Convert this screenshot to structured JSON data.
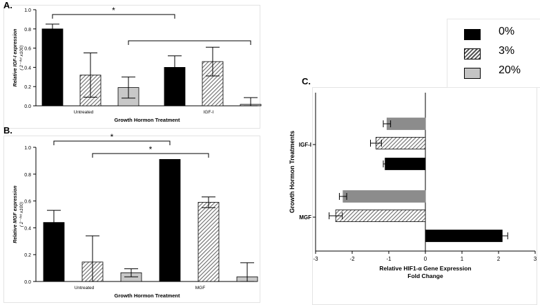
{
  "panel_labels": {
    "a": "A.",
    "b": "B.",
    "c": "C."
  },
  "legend": {
    "items": [
      {
        "label": "0%",
        "color": "#000000",
        "fill": "solid"
      },
      {
        "label": "3%",
        "color": "#888888",
        "fill": "hatch"
      },
      {
        "label": "20%",
        "color": "#bdbdbd",
        "fill": "light"
      }
    ]
  },
  "chart_data": [
    {
      "id": "A",
      "type": "bar",
      "title": "",
      "xlabel": "Growth Hormon Treatment",
      "ylabel_line1": "Relative IGF-I expression",
      "ylabel_line2": "( 2⁻ᐞᶜᵗ x100)",
      "ylim": [
        0,
        1.0
      ],
      "yticks": [
        "0.0",
        "0.2",
        "0.4",
        "0.6",
        "0.8",
        "1.0"
      ],
      "groups": [
        "Untreated",
        "IGF-I"
      ],
      "series": [
        {
          "name": "0%",
          "values": [
            0.8,
            0.4
          ],
          "errors": [
            0.05,
            0.12
          ]
        },
        {
          "name": "3%",
          "values": [
            0.32,
            0.46
          ],
          "errors": [
            0.23,
            0.15
          ]
        },
        {
          "name": "20%",
          "values": [
            0.19,
            0.015
          ],
          "errors": [
            0.11,
            0.07
          ]
        }
      ],
      "significance": [
        {
          "label": "*",
          "from": [
            0,
            0
          ],
          "to": [
            1,
            0
          ]
        },
        {
          "label": "",
          "from": [
            0,
            2
          ],
          "to": [
            1,
            2
          ]
        }
      ]
    },
    {
      "id": "B",
      "type": "bar",
      "title": "",
      "xlabel": "Growth Hormon Treatment",
      "ylabel_line1": "Relative MGF expression",
      "ylabel_line2": "( 2⁻ᐞᶜᵗ x100)",
      "ylim": [
        0,
        1.0
      ],
      "yticks": [
        "0.0",
        "0.2",
        "0.4",
        "0.6",
        "0.8",
        "1.0"
      ],
      "groups": [
        "Untreated",
        "MGF"
      ],
      "series": [
        {
          "name": "0%",
          "values": [
            0.44,
            0.91
          ],
          "errors": [
            0.09,
            0.0
          ]
        },
        {
          "name": "3%",
          "values": [
            0.145,
            0.59
          ],
          "errors": [
            0.195,
            0.04
          ]
        },
        {
          "name": "20%",
          "values": [
            0.065,
            0.035
          ],
          "errors": [
            0.03,
            0.105
          ]
        }
      ],
      "significance": [
        {
          "label": "*",
          "from": [
            0,
            0
          ],
          "to": [
            1,
            0
          ]
        },
        {
          "label": "*",
          "from": [
            0,
            1
          ],
          "to": [
            1,
            1
          ]
        }
      ]
    },
    {
      "id": "C",
      "type": "bar",
      "orientation": "horizontal",
      "title": "",
      "xlabel_line1": "Relative HIF1-α Gene Expression",
      "xlabel_line2": "Fold Change",
      "ylabel": "Growth Hormon Treatments",
      "xlim": [
        -3,
        3
      ],
      "xticks": [
        "-3",
        "-2",
        "-1",
        "0",
        "1",
        "2",
        "3"
      ],
      "groups": [
        "IGF-I",
        "MGF"
      ],
      "series": [
        {
          "name": "0%",
          "values": [
            -1.1,
            2.1
          ],
          "errors": [
            0.05,
            0.15
          ]
        },
        {
          "name": "3%",
          "values": [
            -1.35,
            -2.45
          ],
          "errors": [
            0.15,
            0.18
          ]
        },
        {
          "name": "20%",
          "values": [
            -1.05,
            -2.25
          ],
          "errors": [
            0.1,
            0.1
          ]
        }
      ]
    }
  ]
}
